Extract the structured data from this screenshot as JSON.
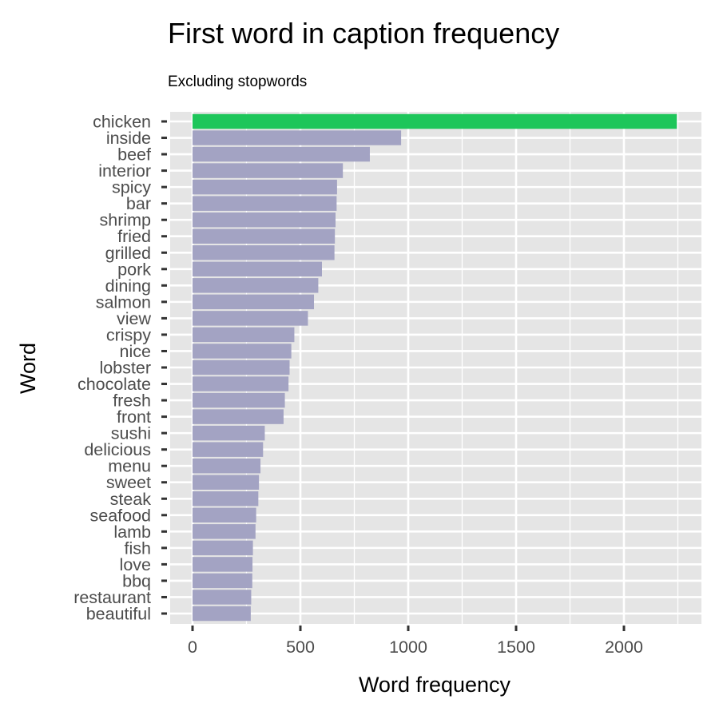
{
  "chart_data": {
    "type": "bar",
    "orientation": "horizontal",
    "title": "First word in caption frequency",
    "subtitle": "Excluding stopwords",
    "xlabel": "Word frequency",
    "ylabel": "Word",
    "xlim": [
      -120,
      2360
    ],
    "xticks": [
      0,
      500,
      1000,
      1500,
      2000
    ],
    "xtick_labels": [
      "0",
      "500",
      "1000",
      "1500",
      "2000"
    ],
    "grid": true,
    "categories": [
      "chicken",
      "inside",
      "beef",
      "interior",
      "spicy",
      "bar",
      "shrimp",
      "fried",
      "grilled",
      "pork",
      "dining",
      "salmon",
      "view",
      "crispy",
      "nice",
      "lobster",
      "chocolate",
      "fresh",
      "front",
      "sushi",
      "delicious",
      "menu",
      "sweet",
      "steak",
      "seafood",
      "lamb",
      "fish",
      "love",
      "bbq",
      "restaurant",
      "beautiful"
    ],
    "values": [
      2245,
      967,
      822,
      697,
      670,
      668,
      663,
      660,
      658,
      600,
      583,
      563,
      535,
      472,
      458,
      450,
      445,
      428,
      422,
      335,
      327,
      315,
      308,
      305,
      295,
      292,
      280,
      278,
      277,
      272,
      270
    ],
    "highlight_index": 0,
    "colors": {
      "highlight": "#1dc65a",
      "bar": "#a3a3c3",
      "panel": "#e5e5e5",
      "grid": "#ffffff",
      "tick_text": "#4d4d4d",
      "tick_mark": "#333333"
    }
  }
}
